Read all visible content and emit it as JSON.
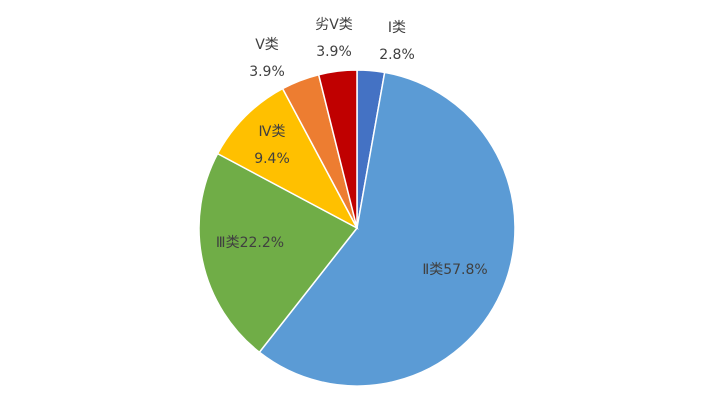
{
  "chart_data": {
    "type": "pie",
    "categories": [
      "Ⅰ类",
      "Ⅱ类",
      "Ⅲ类",
      "Ⅳ类",
      "Ⅴ类",
      "劣Ⅴ类"
    ],
    "values": [
      2.8,
      57.8,
      22.2,
      9.4,
      3.9,
      3.9
    ],
    "value_labels": [
      "2.8%",
      "57.8%",
      "22.2%",
      "9.4%",
      "3.9%",
      "3.9%"
    ],
    "colors": [
      "#4472c4",
      "#5b9bd5",
      "#70ad47",
      "#ffc000",
      "#ed7d31",
      "#c00000"
    ]
  }
}
